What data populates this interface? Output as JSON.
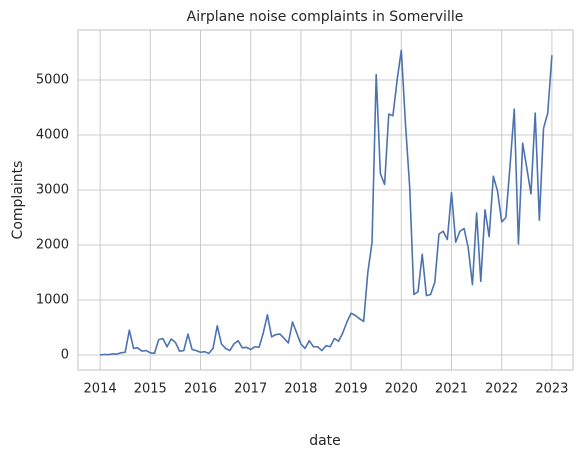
{
  "chart_data": {
    "type": "line",
    "title": "Airplane noise complaints in Somerville",
    "xlabel": "date",
    "ylabel": "Complaints",
    "x": [
      2014,
      2014.083,
      2014.167,
      2014.25,
      2014.333,
      2014.417,
      2014.5,
      2014.583,
      2014.667,
      2014.75,
      2014.833,
      2014.917,
      2015,
      2015.083,
      2015.167,
      2015.25,
      2015.333,
      2015.417,
      2015.5,
      2015.583,
      2015.667,
      2015.75,
      2015.833,
      2015.917,
      2016,
      2016.083,
      2016.167,
      2016.25,
      2016.333,
      2016.417,
      2016.5,
      2016.583,
      2016.667,
      2016.75,
      2016.833,
      2016.917,
      2017,
      2017.083,
      2017.167,
      2017.25,
      2017.333,
      2017.417,
      2017.5,
      2017.583,
      2017.667,
      2017.75,
      2017.833,
      2017.917,
      2018,
      2018.083,
      2018.167,
      2018.25,
      2018.333,
      2018.417,
      2018.5,
      2018.583,
      2018.667,
      2018.75,
      2018.833,
      2018.917,
      2019,
      2019.083,
      2019.167,
      2019.25,
      2019.333,
      2019.417,
      2019.5,
      2019.583,
      2019.667,
      2019.75,
      2019.833,
      2019.917,
      2020,
      2020.083,
      2020.167,
      2020.25,
      2020.333,
      2020.417,
      2020.5,
      2020.583,
      2020.667,
      2020.75,
      2020.833,
      2020.917,
      2021,
      2021.083,
      2021.167,
      2021.25,
      2021.333,
      2021.417,
      2021.5,
      2021.583,
      2021.667,
      2021.75,
      2021.833,
      2021.917,
      2022,
      2022.083,
      2022.167,
      2022.25,
      2022.333,
      2022.417,
      2022.5,
      2022.583,
      2022.667,
      2022.75,
      2022.833,
      2022.917,
      2023
    ],
    "series": [
      {
        "name": "Complaints",
        "color": "#4c72b0",
        "values": [
          0,
          10,
          5,
          20,
          15,
          40,
          50,
          450,
          120,
          130,
          70,
          80,
          40,
          30,
          280,
          300,
          150,
          290,
          230,
          70,
          80,
          380,
          100,
          80,
          50,
          60,
          30,
          120,
          530,
          200,
          120,
          80,
          200,
          260,
          130,
          140,
          100,
          150,
          140,
          400,
          730,
          330,
          370,
          380,
          300,
          220,
          600,
          400,
          200,
          120,
          260,
          150,
          150,
          80,
          170,
          150,
          300,
          250,
          400,
          600,
          760,
          720,
          660,
          610,
          1500,
          2050,
          5100,
          3300,
          3100,
          4380,
          4350,
          5000,
          5540,
          4200,
          3050,
          1100,
          1150,
          1830,
          1080,
          1100,
          1320,
          2200,
          2250,
          2100,
          2950,
          2050,
          2250,
          2300,
          1950,
          1280,
          2580,
          1340,
          2640,
          2150,
          3250,
          2980,
          2420,
          2500,
          3450,
          4470,
          2020,
          3850,
          3400,
          2930,
          4400,
          2450,
          4120,
          4400,
          5450
        ]
      }
    ],
    "xlim": [
      2013.56,
      2023.42
    ],
    "xticks": [
      2014,
      2015,
      2016,
      2017,
      2018,
      2019,
      2020,
      2021,
      2022,
      2023
    ],
    "ylim": [
      -273,
      5909
    ],
    "yticks": [
      0,
      1000,
      2000,
      3000,
      4000,
      5000
    ],
    "grid": true
  }
}
